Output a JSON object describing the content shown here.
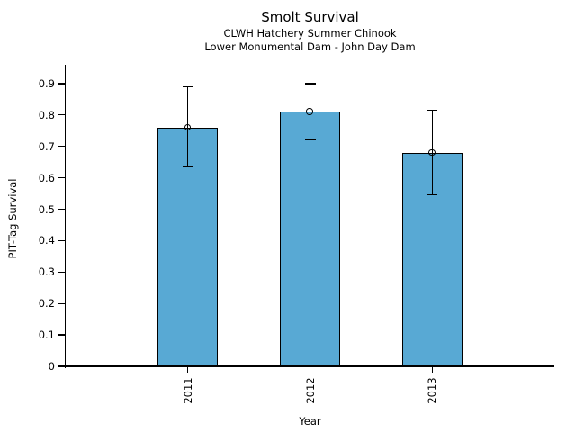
{
  "chart_data": {
    "type": "bar",
    "title": "Smolt Survival",
    "subtitle_lines": [
      "CLWH Hatchery Summer Chinook",
      "Lower Monumental Dam - John Day Dam"
    ],
    "xlabel": "Year",
    "ylabel": "PIT-Tag Survival",
    "categories": [
      "2011",
      "2012",
      "2013"
    ],
    "values": [
      0.76,
      0.81,
      0.68
    ],
    "error_low": [
      0.635,
      0.72,
      0.545
    ],
    "error_high": [
      0.89,
      0.9,
      0.815
    ],
    "yticks": [
      0,
      0.1,
      0.2,
      0.3,
      0.4,
      0.5,
      0.6,
      0.7,
      0.8,
      0.9
    ],
    "ytick_labels": [
      "0",
      "0.1",
      "0.2",
      "0.3",
      "0.4",
      "0.5",
      "0.6",
      "0.7",
      "0.8",
      "0.9"
    ],
    "ylim": [
      0,
      0.96
    ],
    "grid": false,
    "legend": null,
    "marker": "open-circle",
    "bar_color": "#58A9D4",
    "edge_color": "#000000",
    "text_color": "#000000"
  }
}
